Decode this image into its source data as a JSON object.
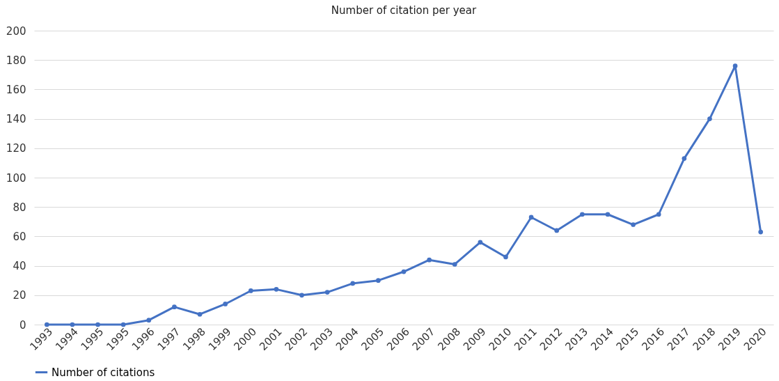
{
  "chart_data": {
    "type": "line",
    "title": "Number of citation per year",
    "categories": [
      "1993",
      "1994",
      "1995",
      "1995",
      "1996",
      "1997",
      "1998",
      "1999",
      "2000",
      "2001",
      "2002",
      "2003",
      "2004",
      "2005",
      "2006",
      "2007",
      "2008",
      "2009",
      "2010",
      "2011",
      "2012",
      "2013",
      "2014",
      "2015",
      "2016",
      "2017",
      "2018",
      "2019",
      "2020"
    ],
    "series": [
      {
        "name": "Number of citations",
        "color": "#4472c4",
        "values": [
          0,
          0,
          0,
          0,
          3,
          12,
          7,
          14,
          23,
          24,
          20,
          22,
          28,
          30,
          36,
          44,
          41,
          56,
          46,
          73,
          64,
          75,
          75,
          68,
          75,
          113,
          140,
          176,
          63
        ]
      }
    ],
    "ylim": [
      0,
      200
    ],
    "yticks": [
      0,
      20,
      40,
      60,
      80,
      100,
      120,
      140,
      160,
      180,
      200
    ],
    "grid": "y",
    "legend": "bottom",
    "marker": "circle",
    "line_style": "solid"
  }
}
